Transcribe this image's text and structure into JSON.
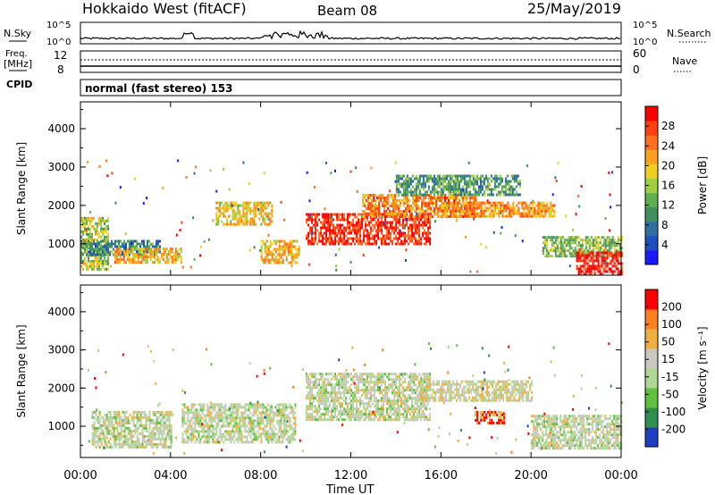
{
  "header": {
    "station": "Hokkaido West (fitACF)",
    "beam": "Beam 08",
    "date": "25/May/2019"
  },
  "mode_line": "normal (fast stereo) 153",
  "top_panels": {
    "nsky_label": "N.Sky",
    "nsky_top_tick": "10^5",
    "nsky_bottom_tick": "10^0",
    "nsky_right_top_tick": "10^5",
    "nsky_right_bottom_tick": "10^0",
    "nsearch_label": "N.Search",
    "freq_label_line1": "Freq.",
    "freq_label_line2": "[MHz]",
    "freq_tick_high": "12",
    "freq_tick_low": "8",
    "nave_tick_high": "60",
    "nave_tick_low": "0",
    "nave_label": "Nave",
    "cpid_label": "CPID"
  },
  "chart_data": [
    {
      "type": "heatmap",
      "title": "Power",
      "ylabel": "Slant Range [km]",
      "xlabel": "Time UT",
      "ylim": [
        180,
        4700
      ],
      "yticks": [
        "1000",
        "2000",
        "3000",
        "4000"
      ],
      "colorbar_label": "Power [dB]",
      "colorbar_ticks": [
        "4",
        "8",
        "12",
        "16",
        "20",
        "24",
        "28"
      ],
      "colorscale": [
        "#1a1aff",
        "#1f4fbf",
        "#2f6f9f",
        "#3f8f5f",
        "#5faf4f",
        "#9fcf3f",
        "#efcf1f",
        "#ff9f1f",
        "#ff6f1f",
        "#ff3f0f",
        "#ff0000"
      ],
      "bands": [
        {
          "t0": 0.0,
          "t1": 1.2,
          "r0": 350,
          "r1": 1700,
          "level": 0.5
        },
        {
          "t0": 0.0,
          "t1": 3.5,
          "r0": 700,
          "r1": 1100,
          "level": 0.3
        },
        {
          "t0": 1.5,
          "t1": 4.5,
          "r0": 500,
          "r1": 900,
          "level": 0.65
        },
        {
          "t0": 6.0,
          "t1": 8.5,
          "r0": 1500,
          "r1": 2100,
          "level": 0.6
        },
        {
          "t0": 8.0,
          "t1": 9.7,
          "r0": 500,
          "r1": 1100,
          "level": 0.62
        },
        {
          "t0": 10.0,
          "t1": 15.5,
          "r0": 1000,
          "r1": 1800,
          "level": 0.9
        },
        {
          "t0": 12.5,
          "t1": 17.5,
          "r0": 1700,
          "r1": 2300,
          "level": 0.75
        },
        {
          "t0": 14.0,
          "t1": 19.5,
          "r0": 2300,
          "r1": 2800,
          "level": 0.35
        },
        {
          "t0": 16.0,
          "t1": 21.0,
          "r0": 1700,
          "r1": 2100,
          "level": 0.7
        },
        {
          "t0": 20.5,
          "t1": 24.0,
          "r0": 700,
          "r1": 1200,
          "level": 0.45
        },
        {
          "t0": 22.0,
          "t1": 24.0,
          "r0": 200,
          "r1": 800,
          "level": 0.95
        }
      ]
    },
    {
      "type": "heatmap",
      "title": "Velocity",
      "ylabel": "Slant Range [km]",
      "xlabel": "Time UT",
      "ylim": [
        180,
        4700
      ],
      "yticks": [
        "1000",
        "2000",
        "3000",
        "4000"
      ],
      "colorbar_label": "Velocity [m s⁻¹]",
      "colorbar_ticks": [
        "200",
        "100",
        "50",
        "15",
        "-15",
        "-50",
        "-100",
        "-200"
      ],
      "colorscale": [
        "#1f3fbf",
        "#2f8f4f",
        "#5fbf3f",
        "#afd78f",
        "#c8c8c0",
        "#f0b040",
        "#ff8020",
        "#ff0000"
      ],
      "bands": [
        {
          "t0": 0.5,
          "t1": 4.0,
          "r0": 450,
          "r1": 1400,
          "level": 0.5
        },
        {
          "t0": 4.5,
          "t1": 9.5,
          "r0": 600,
          "r1": 1600,
          "level": 0.5
        },
        {
          "t0": 10.0,
          "t1": 15.5,
          "r0": 1200,
          "r1": 2400,
          "level": 0.5
        },
        {
          "t0": 15.0,
          "t1": 20.0,
          "r0": 1700,
          "r1": 2200,
          "level": 0.55
        },
        {
          "t0": 17.5,
          "t1": 18.8,
          "r0": 1100,
          "r1": 1400,
          "level": 0.85
        },
        {
          "t0": 20.0,
          "t1": 24.0,
          "r0": 400,
          "r1": 1300,
          "level": 0.5
        }
      ]
    }
  ],
  "time_axis": {
    "ticks": [
      "00:00",
      "04:00",
      "08:00",
      "12:00",
      "16:00",
      "20:00",
      "00:00"
    ],
    "label": "Time UT"
  }
}
